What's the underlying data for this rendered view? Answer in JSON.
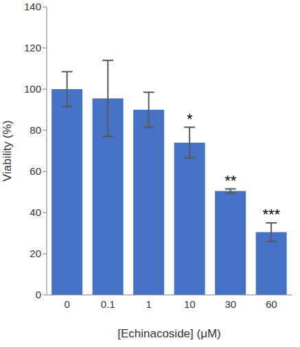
{
  "chart_data": {
    "type": "bar",
    "categories": [
      "0",
      "0.1",
      "1",
      "10",
      "30",
      "60"
    ],
    "values": [
      100,
      95.5,
      90,
      74,
      50.5,
      30.5
    ],
    "errors": [
      8.5,
      18.5,
      8.5,
      7.5,
      1,
      4.5
    ],
    "annotations": [
      null,
      null,
      null,
      "*",
      "**",
      "***"
    ],
    "color": "#4472c4",
    "x_label": "[Echinacoside] (μM)",
    "y_label": "Viability (%)",
    "ylim": [
      0,
      140
    ],
    "yticks": [
      0,
      20,
      40,
      60,
      80,
      100,
      120,
      140
    ],
    "grid": false
  }
}
